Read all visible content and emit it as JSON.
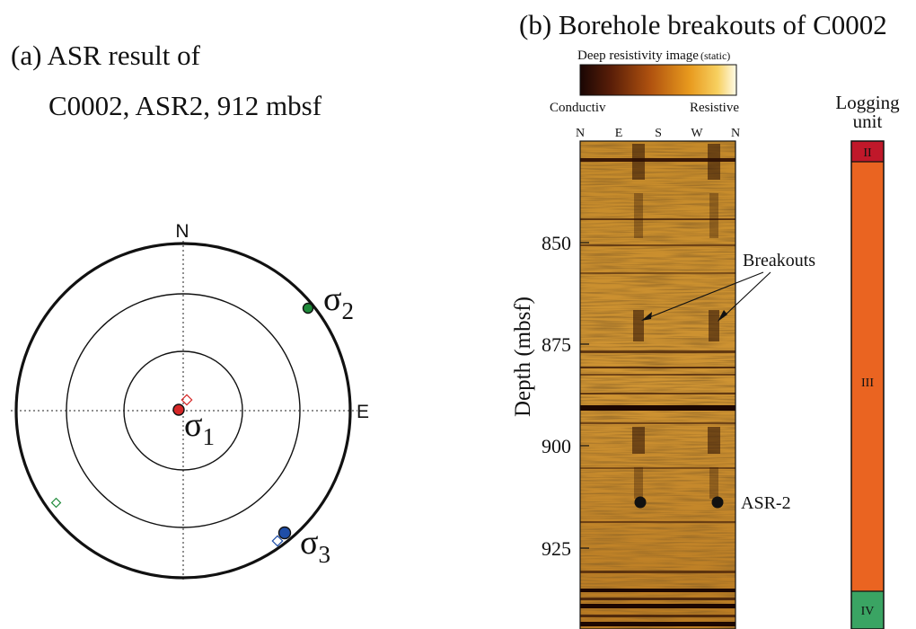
{
  "panel_a": {
    "title": "(a) ASR result of",
    "subtitle": "C0002, ASR2, 912 mbsf",
    "north": "N",
    "east": "E",
    "sigma1": "σ",
    "sigma1_sub": "1",
    "sigma2": "σ",
    "sigma2_sub": "2",
    "sigma3": "σ",
    "sigma3_sub": "3",
    "colors": {
      "sigma1": "#d62828",
      "sigma2": "#1f8a3a",
      "sigma3": "#1f4ea8"
    }
  },
  "panel_b": {
    "title": "(b) Borehole breakouts of C0002",
    "colorbar_title": "Deep resistivity image",
    "colorbar_note": "(static)",
    "colorbar_left": "Conductiv",
    "colorbar_right": "Resistive",
    "azimuths": [
      "N",
      "E",
      "S",
      "W",
      "N"
    ],
    "depth_axis_label": "Depth  (mbsf)",
    "depth_ticks": [
      "850",
      "875",
      "900",
      "925"
    ],
    "breakouts_label": "Breakouts",
    "asr_label": "ASR-2",
    "logging_unit_title_1": "Logging",
    "logging_unit_title_2": "unit",
    "units": [
      {
        "label": "II",
        "color": "#c0182a"
      },
      {
        "label": "III",
        "color": "#ea6421"
      },
      {
        "label": "IV",
        "color": "#3aa463"
      }
    ]
  }
}
